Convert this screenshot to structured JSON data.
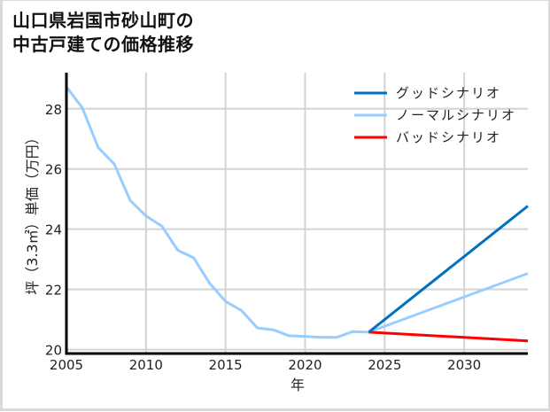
{
  "title": "山口県岩国市砂山町の\n中古戸建ての価格推移",
  "colors": {
    "good": "#0070C0",
    "normal": "#99CCFF",
    "bad": "#FF0000",
    "grid": "#d3d3d3",
    "axis": "#000000"
  },
  "chart_data": {
    "type": "line",
    "title": "山口県岩国市砂山町の中古戸建ての価格推移",
    "xlabel": "年",
    "ylabel": "坪（3.3㎡）単価（万円）",
    "xlim": [
      2005,
      2034
    ],
    "ylim": [
      19.87,
      29.2
    ],
    "xticks": [
      2005,
      2010,
      2015,
      2020,
      2025,
      2030
    ],
    "yticks": [
      20,
      22,
      24,
      26,
      28
    ],
    "grid": true,
    "legend_position": "upper right",
    "series": [
      {
        "name": "ノーマルシナリオ",
        "role": "historical",
        "x": [
          2005,
          2006,
          2007,
          2008,
          2009,
          2010,
          2011,
          2012,
          2013,
          2014,
          2015,
          2016,
          2017,
          2018,
          2019,
          2020,
          2021,
          2022,
          2023,
          2024
        ],
        "values": [
          28.73,
          28.03,
          26.71,
          26.17,
          24.96,
          24.44,
          24.1,
          23.3,
          23.05,
          22.2,
          21.6,
          21.3,
          20.72,
          20.66,
          20.46,
          20.44,
          20.41,
          20.41,
          20.6,
          20.58
        ]
      },
      {
        "name": "グッドシナリオ",
        "x": [
          2024,
          2034
        ],
        "values": [
          20.58,
          24.77
        ]
      },
      {
        "name": "ノーマルシナリオ",
        "x": [
          2024,
          2034
        ],
        "values": [
          20.58,
          22.53
        ]
      },
      {
        "name": "バッドシナリオ",
        "x": [
          2024,
          2034
        ],
        "values": [
          20.58,
          20.29
        ]
      }
    ]
  },
  "legend": [
    {
      "label": "グッドシナリオ",
      "color": "#0070C0"
    },
    {
      "label": "ノーマルシナリオ",
      "color": "#99CCFF"
    },
    {
      "label": "バッドシナリオ",
      "color": "#FF0000"
    }
  ]
}
